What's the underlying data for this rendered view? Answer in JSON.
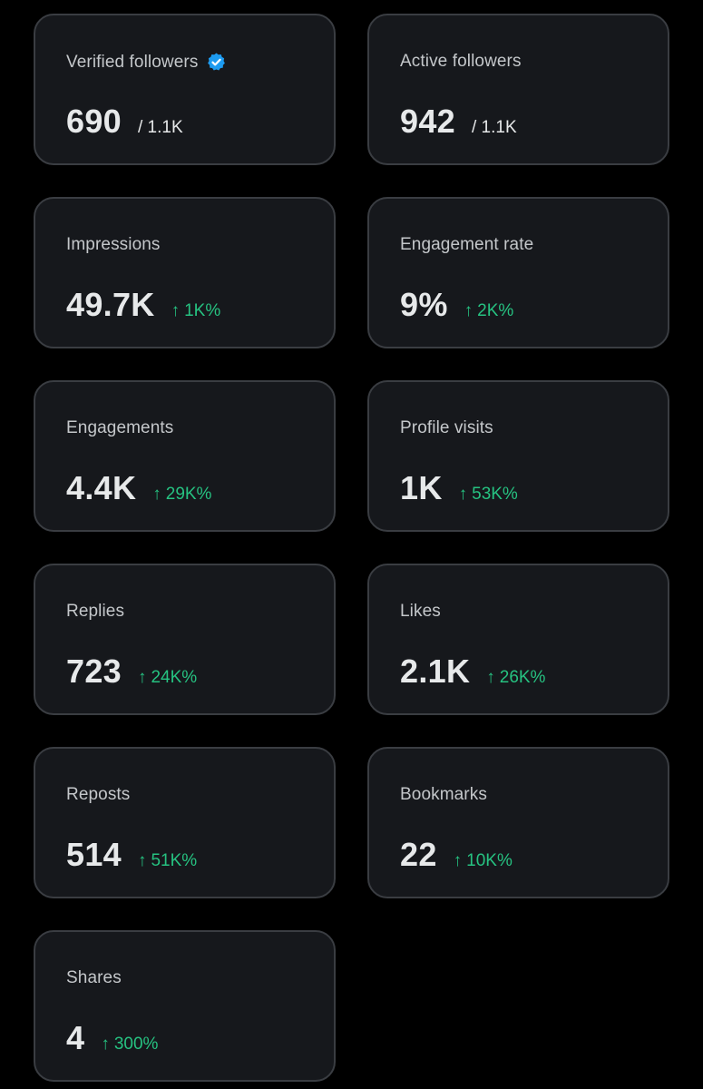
{
  "colors": {
    "background": "#000000",
    "card": "#16181c",
    "card_border": "#3a3d42",
    "positive": "#26c281",
    "verified_badge": "#1d9bf0"
  },
  "cards": [
    {
      "label": "Verified followers",
      "value": "690",
      "total": "/ 1.1K",
      "badge_icon": "verified-badge-icon"
    },
    {
      "label": "Active followers",
      "value": "942",
      "total": "/ 1.1K"
    },
    {
      "label": "Impressions",
      "value": "49.7K",
      "change": "1K%",
      "change_icon": "arrow-up-icon"
    },
    {
      "label": "Engagement rate",
      "value": "9%",
      "change": "2K%",
      "change_icon": "arrow-up-icon"
    },
    {
      "label": "Engagements",
      "value": "4.4K",
      "change": "29K%",
      "change_icon": "arrow-up-icon"
    },
    {
      "label": "Profile visits",
      "value": "1K",
      "change": "53K%",
      "change_icon": "arrow-up-icon"
    },
    {
      "label": "Replies",
      "value": "723",
      "change": "24K%",
      "change_icon": "arrow-up-icon"
    },
    {
      "label": "Likes",
      "value": "2.1K",
      "change": "26K%",
      "change_icon": "arrow-up-icon"
    },
    {
      "label": "Reposts",
      "value": "514",
      "change": "51K%",
      "change_icon": "arrow-up-icon"
    },
    {
      "label": "Bookmarks",
      "value": "22",
      "change": "10K%",
      "change_icon": "arrow-up-icon"
    },
    {
      "label": "Shares",
      "value": "4",
      "change": "300%",
      "change_icon": "arrow-up-icon"
    }
  ]
}
